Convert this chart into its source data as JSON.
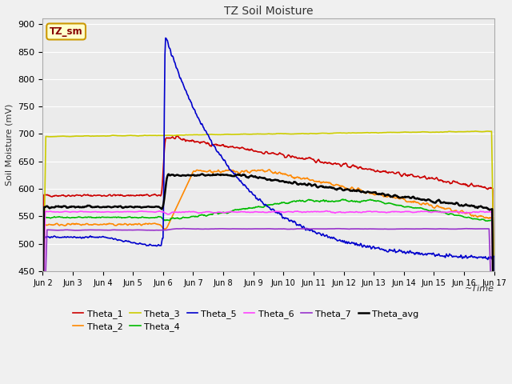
{
  "title": "TZ Soil Moisture",
  "ylabel": "Soil Moisture (mV)",
  "ylim": [
    450,
    910
  ],
  "yticks": [
    450,
    500,
    550,
    600,
    650,
    700,
    750,
    800,
    850,
    900
  ],
  "xtick_labels": [
    "Jun 2",
    "Jun 3",
    "Jun 4",
    "Jun 5",
    "Jun 6",
    "Jun 7",
    "Jun 8",
    "Jun 9",
    "Jun 10",
    "Jun 11",
    "Jun 12",
    "Jun 13",
    "Jun 14",
    "Jun 15",
    "Jun 16",
    "Jun 17"
  ],
  "fig_bg": "#f0f0f0",
  "plot_bg": "#ebebeb",
  "grid_color": "#ffffff",
  "legend_box_facecolor": "#ffffcc",
  "legend_box_edgecolor": "#cc9900",
  "legend_box_text": "TZ_sm",
  "legend_box_textcolor": "#880000",
  "series": {
    "Theta_1": {
      "color": "#cc0000",
      "lw": 1.2
    },
    "Theta_2": {
      "color": "#ff8800",
      "lw": 1.2
    },
    "Theta_3": {
      "color": "#cccc00",
      "lw": 1.2
    },
    "Theta_4": {
      "color": "#00bb00",
      "lw": 1.2
    },
    "Theta_5": {
      "color": "#0000cc",
      "lw": 1.2
    },
    "Theta_6": {
      "color": "#ff44ff",
      "lw": 1.2
    },
    "Theta_7": {
      "color": "#9933cc",
      "lw": 1.2
    },
    "Theta_avg": {
      "color": "#000000",
      "lw": 1.8
    }
  },
  "legend_order": [
    "Theta_1",
    "Theta_2",
    "Theta_3",
    "Theta_4",
    "Theta_5",
    "Theta_6",
    "Theta_7",
    "Theta_avg"
  ]
}
